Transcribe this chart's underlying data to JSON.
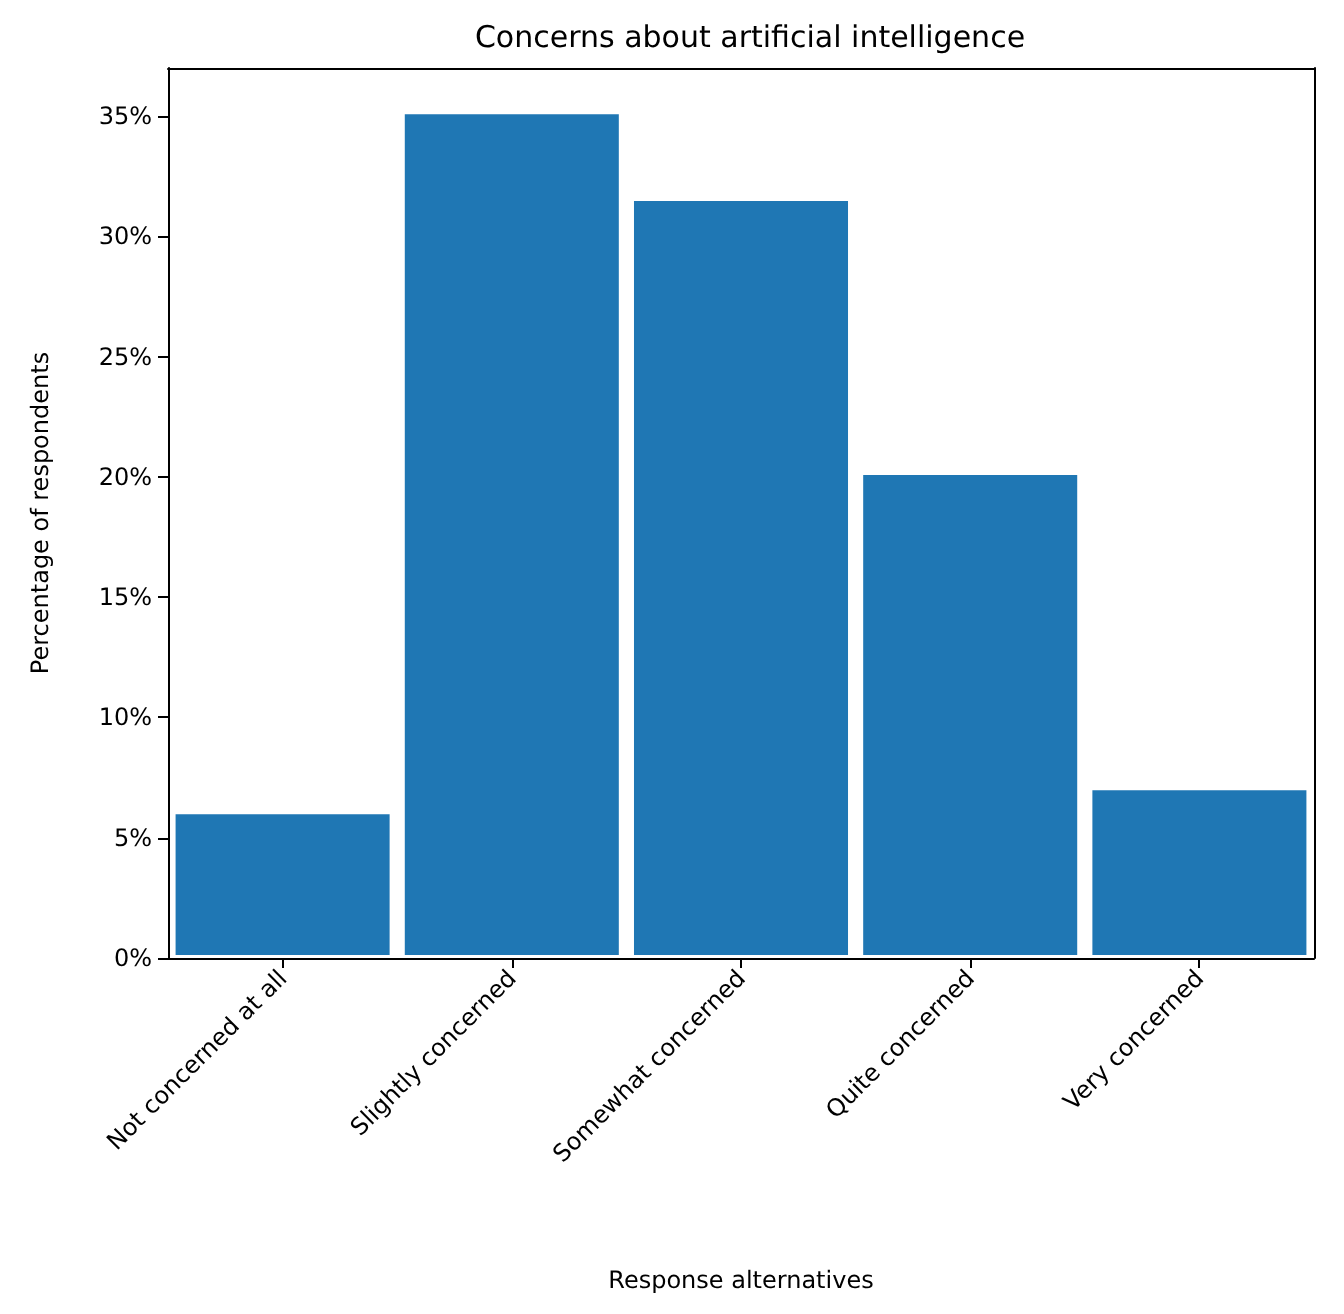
{
  "chart_data": {
    "type": "bar",
    "title": "Concerns about artificial intelligence",
    "xlabel": "Response alternatives",
    "ylabel": "Percentage of respondents",
    "categories": [
      "Not concerned at all",
      "Slightly concerned",
      "Somewhat concerned",
      "Quite concerned",
      "Very concerned"
    ],
    "values": [
      6.1,
      35.2,
      31.6,
      20.2,
      7.1
    ],
    "color": "#1f77b4",
    "ylim": [
      0,
      37
    ],
    "yticks": [
      {
        "value": 0,
        "label": "0%"
      },
      {
        "value": 5,
        "label": "5%"
      },
      {
        "value": 10,
        "label": "10%"
      },
      {
        "value": 15,
        "label": "15%"
      },
      {
        "value": 20,
        "label": "20%"
      },
      {
        "value": 25,
        "label": "25%"
      },
      {
        "value": 30,
        "label": "30%"
      },
      {
        "value": 35,
        "label": "35%"
      }
    ],
    "grid": false
  }
}
